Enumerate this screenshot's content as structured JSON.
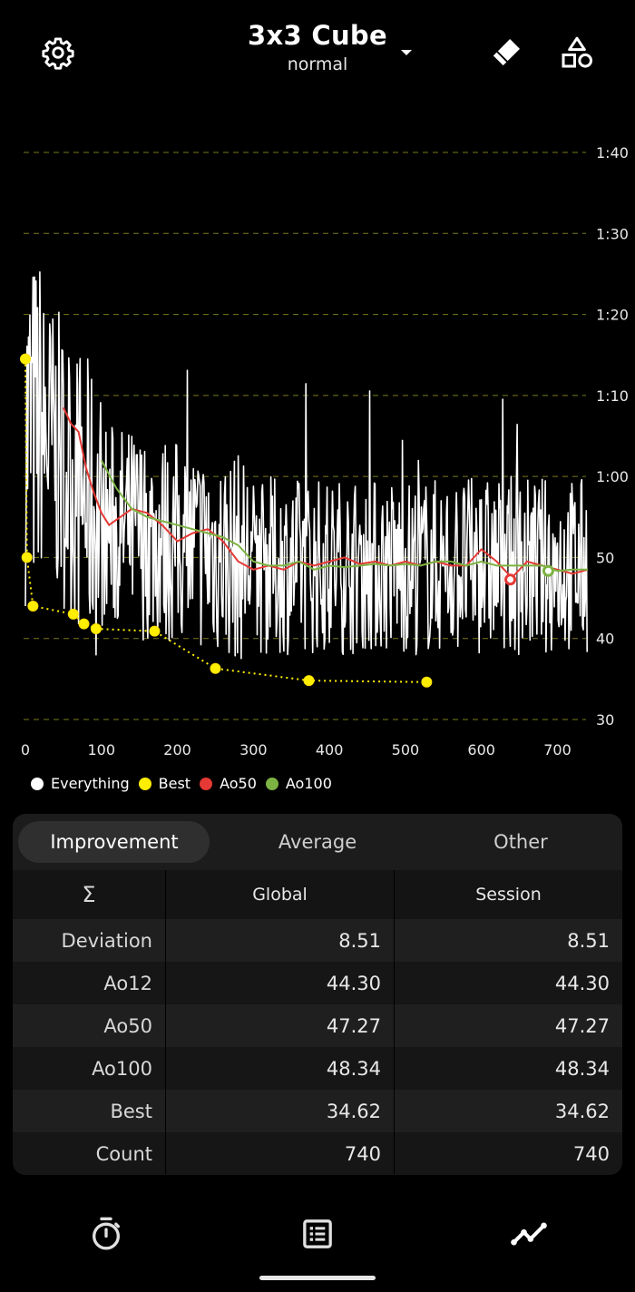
{
  "header": {
    "title": "3x3 Cube",
    "subtitle": "normal",
    "settings_icon": "gear-icon",
    "dropdown_icon": "caret-down-icon",
    "tool_icon": "eraser-icon",
    "shapes_icon": "shapes-icon"
  },
  "legend": [
    {
      "label": "Everything",
      "color": "#ffffff"
    },
    {
      "label": "Best",
      "color": "#ffee00"
    },
    {
      "label": "Ao50",
      "color": "#e53935"
    },
    {
      "label": "Ao100",
      "color": "#7cb342"
    }
  ],
  "chart_data": {
    "type": "line",
    "x_ticks": [
      "0",
      "100",
      "200",
      "300",
      "400",
      "500",
      "600",
      "700"
    ],
    "y_ticks": [
      "30",
      "40",
      "50",
      "1:00",
      "1:10",
      "1:20",
      "1:30",
      "1:40"
    ],
    "xlim": [
      0,
      740
    ],
    "ylim": [
      30,
      100
    ],
    "y_unit": "seconds",
    "grid": true,
    "legend_position": "bottom-left",
    "series": [
      {
        "name": "Best",
        "color": "#ffee00",
        "points": [
          [
            0,
            74.5
          ],
          [
            2,
            50.0
          ],
          [
            10,
            44.0
          ],
          [
            63,
            43.0
          ],
          [
            77,
            41.8
          ],
          [
            93,
            41.2
          ],
          [
            170,
            40.9
          ],
          [
            250,
            36.3
          ],
          [
            373,
            34.8
          ],
          [
            528,
            34.62
          ]
        ]
      },
      {
        "name": "Ao50",
        "color": "#e53935",
        "points": [
          [
            50,
            68.5
          ],
          [
            60,
            66.5
          ],
          [
            70,
            65.5
          ],
          [
            80,
            61.0
          ],
          [
            90,
            58.0
          ],
          [
            100,
            55.5
          ],
          [
            110,
            54.0
          ],
          [
            125,
            55.0
          ],
          [
            140,
            56.0
          ],
          [
            160,
            55.5
          ],
          [
            180,
            54.0
          ],
          [
            200,
            52.0
          ],
          [
            220,
            53.0
          ],
          [
            240,
            53.5
          ],
          [
            260,
            52.0
          ],
          [
            280,
            49.5
          ],
          [
            300,
            48.5
          ],
          [
            320,
            49.0
          ],
          [
            340,
            48.5
          ],
          [
            360,
            49.5
          ],
          [
            380,
            49.0
          ],
          [
            400,
            49.5
          ],
          [
            420,
            50.0
          ],
          [
            440,
            49.2
          ],
          [
            460,
            49.5
          ],
          [
            480,
            49.0
          ],
          [
            500,
            49.5
          ],
          [
            520,
            49.0
          ],
          [
            540,
            49.5
          ],
          [
            560,
            49.0
          ],
          [
            580,
            49.0
          ],
          [
            600,
            51.0
          ],
          [
            620,
            49.5
          ],
          [
            640,
            47.5
          ],
          [
            660,
            49.5
          ],
          [
            680,
            49.0
          ],
          [
            700,
            48.5
          ],
          [
            720,
            48.0
          ],
          [
            740,
            48.5
          ]
        ]
      },
      {
        "name": "Ao100",
        "color": "#7cb342",
        "points": [
          [
            100,
            62.0
          ],
          [
            120,
            58.5
          ],
          [
            140,
            56.0
          ],
          [
            160,
            55.0
          ],
          [
            180,
            54.5
          ],
          [
            200,
            54.0
          ],
          [
            220,
            53.5
          ],
          [
            240,
            53.0
          ],
          [
            260,
            52.5
          ],
          [
            280,
            51.5
          ],
          [
            300,
            49.5
          ],
          [
            320,
            49.0
          ],
          [
            340,
            49.0
          ],
          [
            360,
            49.5
          ],
          [
            380,
            48.5
          ],
          [
            400,
            49.0
          ],
          [
            420,
            48.8
          ],
          [
            440,
            49.0
          ],
          [
            460,
            49.2
          ],
          [
            480,
            49.0
          ],
          [
            500,
            49.2
          ],
          [
            520,
            49.0
          ],
          [
            540,
            49.5
          ],
          [
            560,
            49.5
          ],
          [
            580,
            49.0
          ],
          [
            600,
            49.5
          ],
          [
            620,
            49.0
          ],
          [
            640,
            49.0
          ],
          [
            660,
            49.0
          ],
          [
            680,
            49.0
          ],
          [
            700,
            48.34
          ],
          [
            720,
            48.5
          ],
          [
            740,
            48.5
          ]
        ]
      },
      {
        "name": "Everything",
        "color": "#ffffff",
        "points": []
      }
    ],
    "markers": [
      {
        "series": "Ao50",
        "x": 638,
        "y": 47.27
      },
      {
        "series": "Ao100",
        "x": 688,
        "y": 48.34
      }
    ]
  },
  "stats": {
    "tabs": [
      "Improvement",
      "Average",
      "Other"
    ],
    "active_tab": 0,
    "header": {
      "sigma": "Σ",
      "global": "Global",
      "session": "Session"
    },
    "rows": [
      {
        "label": "Deviation",
        "global": "8.51",
        "session": "8.51"
      },
      {
        "label": "Ao12",
        "global": "44.30",
        "session": "44.30"
      },
      {
        "label": "Ao50",
        "global": "47.27",
        "session": "47.27"
      },
      {
        "label": "Ao100",
        "global": "48.34",
        "session": "48.34"
      },
      {
        "label": "Best",
        "global": "34.62",
        "session": "34.62"
      },
      {
        "label": "Count",
        "global": "740",
        "session": "740"
      }
    ]
  },
  "nav": {
    "timer_icon": "stopwatch-icon",
    "list_icon": "list-icon",
    "stats_icon": "trend-line-icon"
  }
}
